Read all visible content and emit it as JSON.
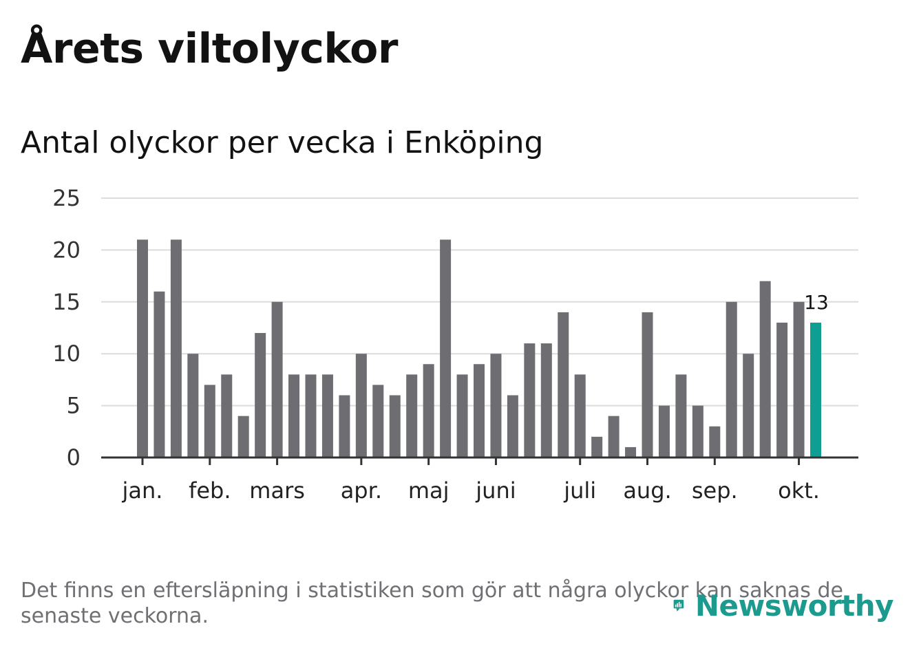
{
  "header": {
    "title": "Årets viltolyckor",
    "subtitle": "Antal olyckor per vecka i Enköping"
  },
  "footer": {
    "note": "Det finns en eftersläpning i statistiken som gör att några olyckor kan saknas de senaste veckorna.",
    "brand_name": "Newsworthy",
    "brand_icon": "bar-chart-speech-bubble-icon"
  },
  "colors": {
    "bar": "#6d6d72",
    "highlight": "#0f9e92",
    "grid": "#dcdcdc",
    "axis": "#333333",
    "brand": "#1d9a8e"
  },
  "chart_data": {
    "type": "bar",
    "title": "Antal olyckor per vecka i Enköping",
    "xlabel": "",
    "ylabel": "",
    "ylim": [
      0,
      25
    ],
    "yticks": [
      0,
      5,
      10,
      15,
      20,
      25
    ],
    "grid": true,
    "values": [
      21,
      16,
      21,
      10,
      7,
      8,
      4,
      12,
      15,
      8,
      8,
      8,
      6,
      10,
      7,
      6,
      8,
      9,
      21,
      8,
      9,
      10,
      6,
      11,
      11,
      14,
      8,
      2,
      4,
      1,
      14,
      5,
      8,
      5,
      3,
      15,
      10,
      17,
      13,
      15,
      13
    ],
    "highlight_index": 40,
    "highlight_label": "13",
    "month_labels": [
      {
        "label": "jan.",
        "bar_index": 0
      },
      {
        "label": "feb.",
        "bar_index": 4
      },
      {
        "label": "mars",
        "bar_index": 8
      },
      {
        "label": "apr.",
        "bar_index": 13
      },
      {
        "label": "maj",
        "bar_index": 17
      },
      {
        "label": "juni",
        "bar_index": 21
      },
      {
        "label": "juli",
        "bar_index": 26
      },
      {
        "label": "aug.",
        "bar_index": 30
      },
      {
        "label": "sep.",
        "bar_index": 34
      },
      {
        "label": "okt.",
        "bar_index": 39
      }
    ]
  }
}
